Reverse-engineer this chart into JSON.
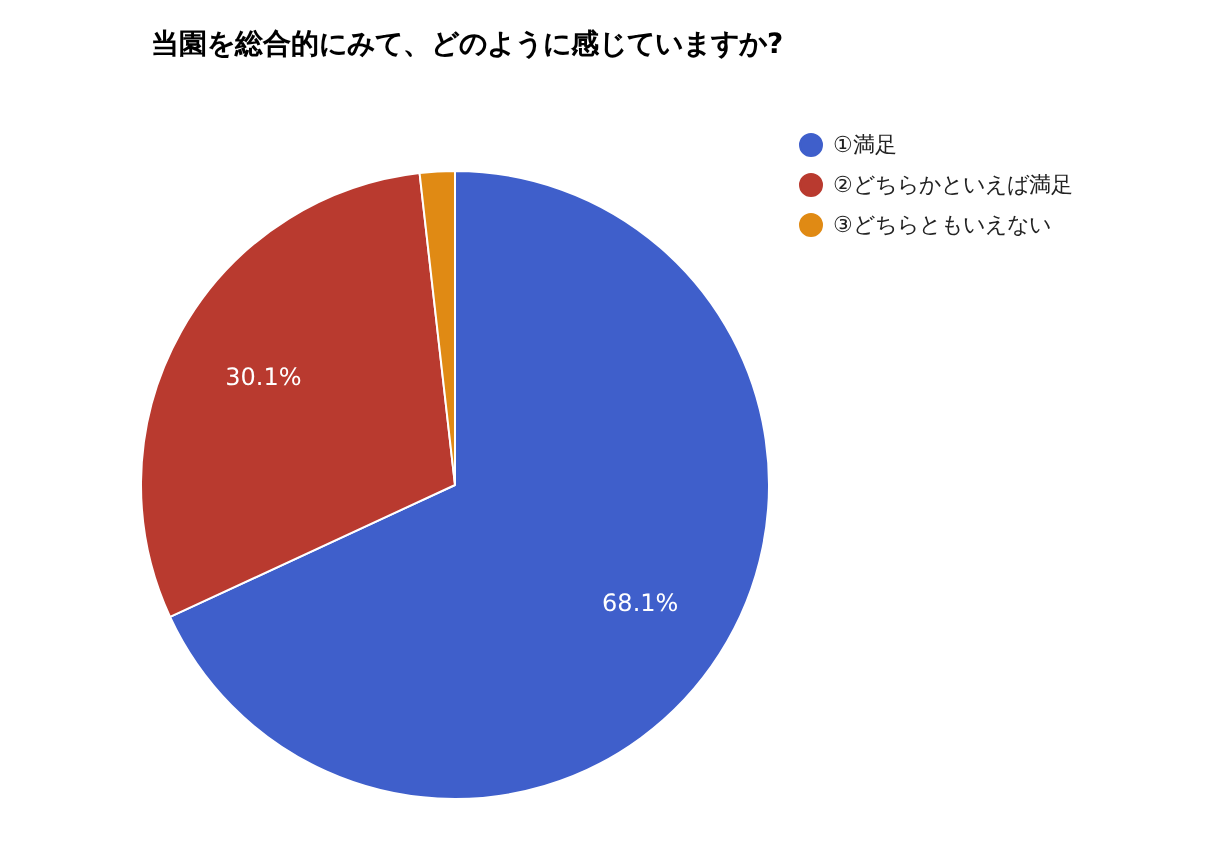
{
  "chart_data": {
    "type": "pie",
    "title": "当園を総合的にみて、どのように感じていますか?",
    "categories": [
      "①満足",
      "②どちらかといえば満足",
      "③どちらともいえない"
    ],
    "values": [
      68.1,
      30.1,
      1.8
    ],
    "colors": [
      "#3f5fcb",
      "#b93a2f",
      "#e08a14"
    ],
    "value_labels": [
      "68.1%",
      "30.1%",
      null
    ],
    "legend": "top right"
  }
}
